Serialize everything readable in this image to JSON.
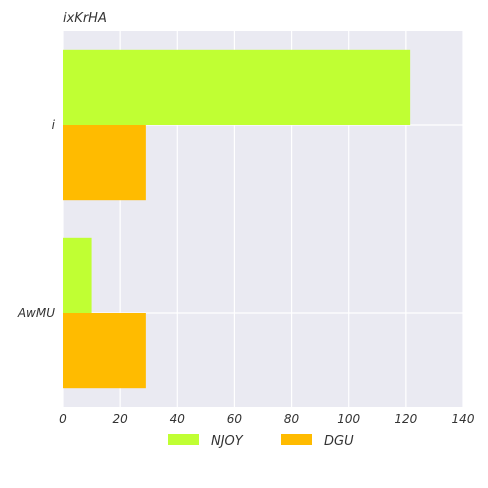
{
  "chart_data": {
    "type": "bar",
    "orientation": "horizontal",
    "title": "ixKrHA",
    "xlabel": "",
    "ylabel": "",
    "categories": [
      "i",
      "AwMU"
    ],
    "series": [
      {
        "name": "NJOY",
        "values": [
          121.5,
          10
        ],
        "color": "#c0ff33"
      },
      {
        "name": "DGU",
        "values": [
          29,
          29
        ],
        "color": "#ffbb00"
      }
    ],
    "xlim": [
      0,
      140
    ],
    "xticks": [
      0,
      20,
      40,
      60,
      80,
      100,
      120,
      140
    ],
    "grid": true,
    "legend_placement": "bottom-center",
    "colors": {
      "plot_background": "#eaeaf2",
      "grid": "#ffffff",
      "text": "#333333"
    }
  }
}
